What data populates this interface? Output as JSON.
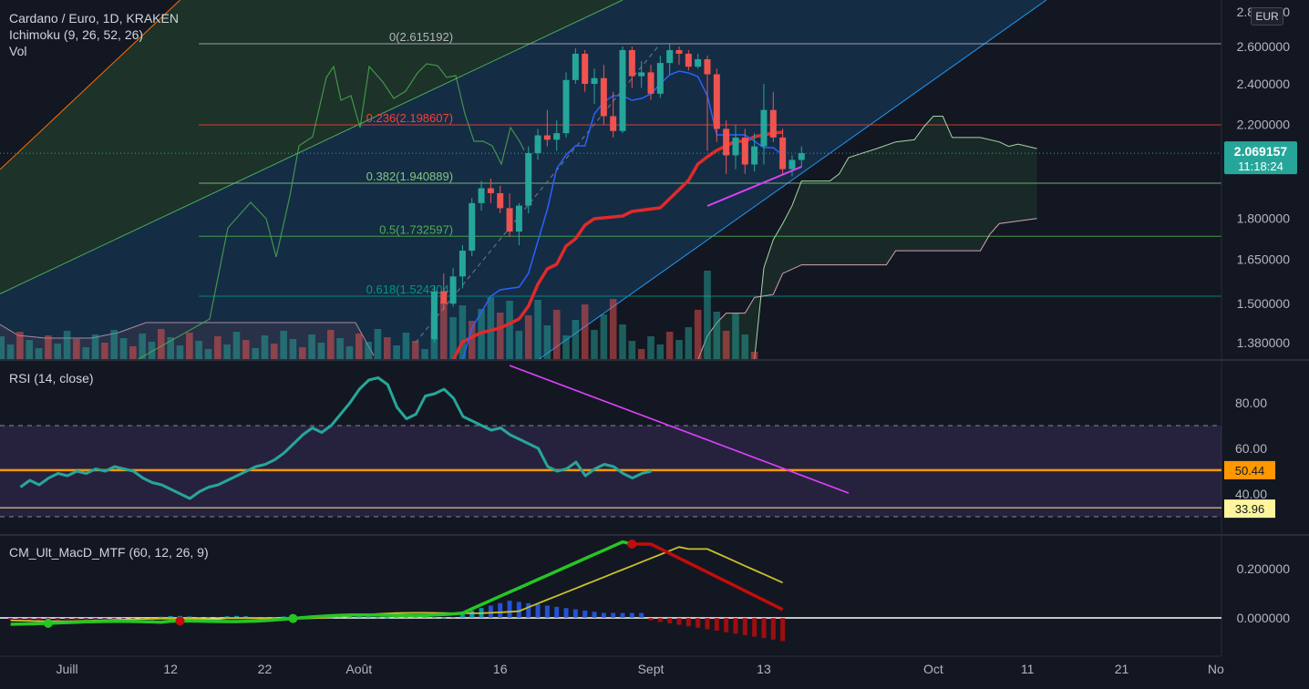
{
  "legend": {
    "symbol": "Cardano / Euro, 1D, KRAKEN",
    "ichimoku": "Ichimoku (9, 26, 52, 26)",
    "vol": "Vol",
    "rsi": "RSI (14, close)",
    "macd": "CM_Ult_MacD_MTF (60, 12, 26, 9)"
  },
  "currency": "EUR",
  "colors": {
    "up": "#26a69a",
    "down": "#ef5350",
    "kijun": "#e02a2a",
    "tenkan": "#2962ff",
    "chikou": "#4caf50",
    "rsi": "#26a69a",
    "rsi_band": "#7e57c2",
    "orange": "#ff9800",
    "fib": "#787b86",
    "channel": "#2196f3",
    "macd_up": "#26c623",
    "macd_down": "#c10d0d",
    "signal": "#c9c12a"
  },
  "chart_data": [
    {
      "type": "candlestick",
      "title": "Cardano / Euro, 1D, KRAKEN",
      "y_axis_ticks": [
        "2.800000",
        "2.600000",
        "2.400000",
        "2.200000",
        "1.800000",
        "1.650000",
        "1.500000",
        "1.380000"
      ],
      "y_axis_values": [
        2.8,
        2.6,
        2.4,
        2.2,
        1.8,
        1.65,
        1.5,
        1.38
      ],
      "x_axis_ticks": [
        "Juill",
        "12",
        "22",
        "Août",
        "16",
        "Sept",
        "13",
        "Oct",
        "11",
        "21",
        "No"
      ],
      "ylim": [
        1.33,
        2.85
      ],
      "current_price": "2.069157",
      "countdown": "11:18:24",
      "fib_levels": [
        {
          "label": "0(2.615192)",
          "value": 2.615192
        },
        {
          "label": "0.236(2.198607)",
          "value": 2.198607
        },
        {
          "label": "0.382(1.940889)",
          "value": 1.940889
        },
        {
          "label": "0.5(1.732597)",
          "value": 1.732597
        },
        {
          "label": "0.618(1.524304)",
          "value": 1.524304
        }
      ],
      "candles": [
        {
          "date": "2021-08-09",
          "o": 1.39,
          "h": 1.56,
          "l": 1.38,
          "c": 1.54
        },
        {
          "date": "2021-08-10",
          "o": 1.54,
          "h": 1.6,
          "l": 1.48,
          "c": 1.5
        },
        {
          "date": "2021-08-11",
          "o": 1.5,
          "h": 1.62,
          "l": 1.49,
          "c": 1.59
        },
        {
          "date": "2021-08-12",
          "o": 1.59,
          "h": 1.7,
          "l": 1.55,
          "c": 1.68
        },
        {
          "date": "2021-08-13",
          "o": 1.68,
          "h": 1.88,
          "l": 1.66,
          "c": 1.86
        },
        {
          "date": "2021-08-14",
          "o": 1.86,
          "h": 1.95,
          "l": 1.83,
          "c": 1.92
        },
        {
          "date": "2021-08-15",
          "o": 1.92,
          "h": 1.96,
          "l": 1.86,
          "c": 1.9
        },
        {
          "date": "2021-08-16",
          "o": 1.9,
          "h": 1.93,
          "l": 1.82,
          "c": 1.84
        },
        {
          "date": "2021-08-17",
          "o": 1.84,
          "h": 1.9,
          "l": 1.73,
          "c": 1.75
        },
        {
          "date": "2021-08-18",
          "o": 1.75,
          "h": 1.86,
          "l": 1.7,
          "c": 1.85
        },
        {
          "date": "2021-08-19",
          "o": 1.85,
          "h": 2.1,
          "l": 1.82,
          "c": 2.07
        },
        {
          "date": "2021-08-20",
          "o": 2.07,
          "h": 2.18,
          "l": 2.04,
          "c": 2.15
        },
        {
          "date": "2021-08-21",
          "o": 2.15,
          "h": 2.27,
          "l": 2.1,
          "c": 2.13
        },
        {
          "date": "2021-08-22",
          "o": 2.13,
          "h": 2.22,
          "l": 2.08,
          "c": 2.16
        },
        {
          "date": "2021-08-23",
          "o": 2.16,
          "h": 2.46,
          "l": 2.14,
          "c": 2.42
        },
        {
          "date": "2021-08-24",
          "o": 2.42,
          "h": 2.59,
          "l": 2.4,
          "c": 2.56
        },
        {
          "date": "2021-08-25",
          "o": 2.56,
          "h": 2.58,
          "l": 2.36,
          "c": 2.4
        },
        {
          "date": "2021-08-26",
          "o": 2.4,
          "h": 2.48,
          "l": 2.3,
          "c": 2.43
        },
        {
          "date": "2021-08-27",
          "o": 2.43,
          "h": 2.5,
          "l": 2.2,
          "c": 2.24
        },
        {
          "date": "2021-08-28",
          "o": 2.24,
          "h": 2.36,
          "l": 2.14,
          "c": 2.17
        },
        {
          "date": "2021-08-29",
          "o": 2.17,
          "h": 2.6,
          "l": 2.16,
          "c": 2.58
        },
        {
          "date": "2021-08-30",
          "o": 2.58,
          "h": 2.6,
          "l": 2.38,
          "c": 2.44
        },
        {
          "date": "2021-08-31",
          "o": 2.44,
          "h": 2.52,
          "l": 2.38,
          "c": 2.46
        },
        {
          "date": "2021-09-01",
          "o": 2.46,
          "h": 2.5,
          "l": 2.32,
          "c": 2.35
        },
        {
          "date": "2021-09-02",
          "o": 2.35,
          "h": 2.55,
          "l": 2.33,
          "c": 2.51
        },
        {
          "date": "2021-09-03",
          "o": 2.51,
          "h": 2.62,
          "l": 2.45,
          "c": 2.58
        },
        {
          "date": "2021-09-04",
          "o": 2.58,
          "h": 2.6,
          "l": 2.5,
          "c": 2.56
        },
        {
          "date": "2021-09-05",
          "o": 2.56,
          "h": 2.58,
          "l": 2.47,
          "c": 2.49
        },
        {
          "date": "2021-09-06",
          "o": 2.49,
          "h": 2.56,
          "l": 2.48,
          "c": 2.53
        },
        {
          "date": "2021-09-07",
          "o": 2.53,
          "h": 2.55,
          "l": 2.08,
          "c": 2.45
        },
        {
          "date": "2021-09-08",
          "o": 2.45,
          "h": 2.48,
          "l": 2.12,
          "c": 2.18
        },
        {
          "date": "2021-09-09",
          "o": 2.18,
          "h": 2.22,
          "l": 1.98,
          "c": 2.06
        },
        {
          "date": "2021-09-10",
          "o": 2.06,
          "h": 2.2,
          "l": 2.0,
          "c": 2.14
        },
        {
          "date": "2021-09-11",
          "o": 2.14,
          "h": 2.18,
          "l": 1.98,
          "c": 2.02
        },
        {
          "date": "2021-09-12",
          "o": 2.02,
          "h": 2.16,
          "l": 1.99,
          "c": 2.1
        },
        {
          "date": "2021-09-13",
          "o": 2.1,
          "h": 2.4,
          "l": 2.02,
          "c": 2.27
        },
        {
          "date": "2021-09-14",
          "o": 2.27,
          "h": 2.36,
          "l": 2.12,
          "c": 2.14
        },
        {
          "date": "2021-09-15",
          "o": 2.14,
          "h": 2.18,
          "l": 1.98,
          "c": 2.0
        },
        {
          "date": "2021-09-16",
          "o": 2.0,
          "h": 2.06,
          "l": 1.97,
          "c": 2.04
        },
        {
          "date": "2021-09-17",
          "o": 2.04,
          "h": 2.1,
          "l": 2.01,
          "c": 2.07
        }
      ],
      "rsi_axis_ticks": [
        "80.00",
        "60.00",
        "40.00"
      ],
      "rsi_axis_values": [
        80,
        60,
        40
      ],
      "rsi_bands": [
        70,
        30
      ],
      "rsi_markers": [
        {
          "label": "50.44",
          "value": 50.44
        },
        {
          "label": "33.96",
          "value": 33.96
        }
      ],
      "rsi_values": [
        43,
        46,
        44,
        47,
        49,
        48,
        50,
        49,
        51,
        50,
        52,
        51,
        50,
        47,
        45,
        44,
        42,
        40,
        38,
        41,
        43,
        44,
        46,
        48,
        50,
        52,
        53,
        55,
        58,
        62,
        66,
        69,
        67,
        70,
        75,
        80,
        86,
        90,
        91,
        88,
        78,
        73,
        75,
        83,
        84,
        86,
        82,
        74,
        72,
        70,
        68,
        69,
        66,
        64,
        62,
        60,
        52,
        50,
        51,
        54,
        48,
        51,
        53,
        52,
        49,
        47,
        49,
        50
      ],
      "macd_axis_ticks": [
        "0.200000",
        "0.000000"
      ],
      "macd_axis_values": [
        0.2,
        0.0
      ]
    }
  ]
}
